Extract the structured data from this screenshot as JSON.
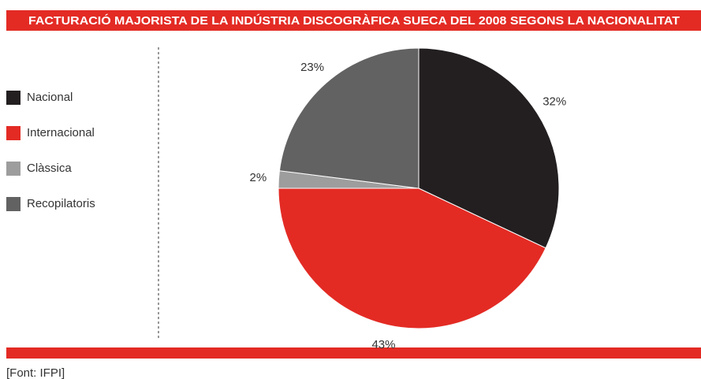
{
  "chart_data": {
    "type": "pie",
    "title": "FACTURACIÓ MAJORISTA DE LA INDÚSTRIA DISCOGRÀFICA SUECA DEL 2008 SEGONS LA NACIONALITAT",
    "categories": [
      "Nacional",
      "Internacional",
      "Clàssica",
      "Recopilatoris"
    ],
    "values": [
      32,
      43,
      2,
      23
    ],
    "value_labels": [
      "32%",
      "43%",
      "2%",
      "23%"
    ],
    "colors": [
      "#231f20",
      "#e32b24",
      "#9d9d9d",
      "#626262"
    ],
    "source": "[Font: IFPI]"
  }
}
